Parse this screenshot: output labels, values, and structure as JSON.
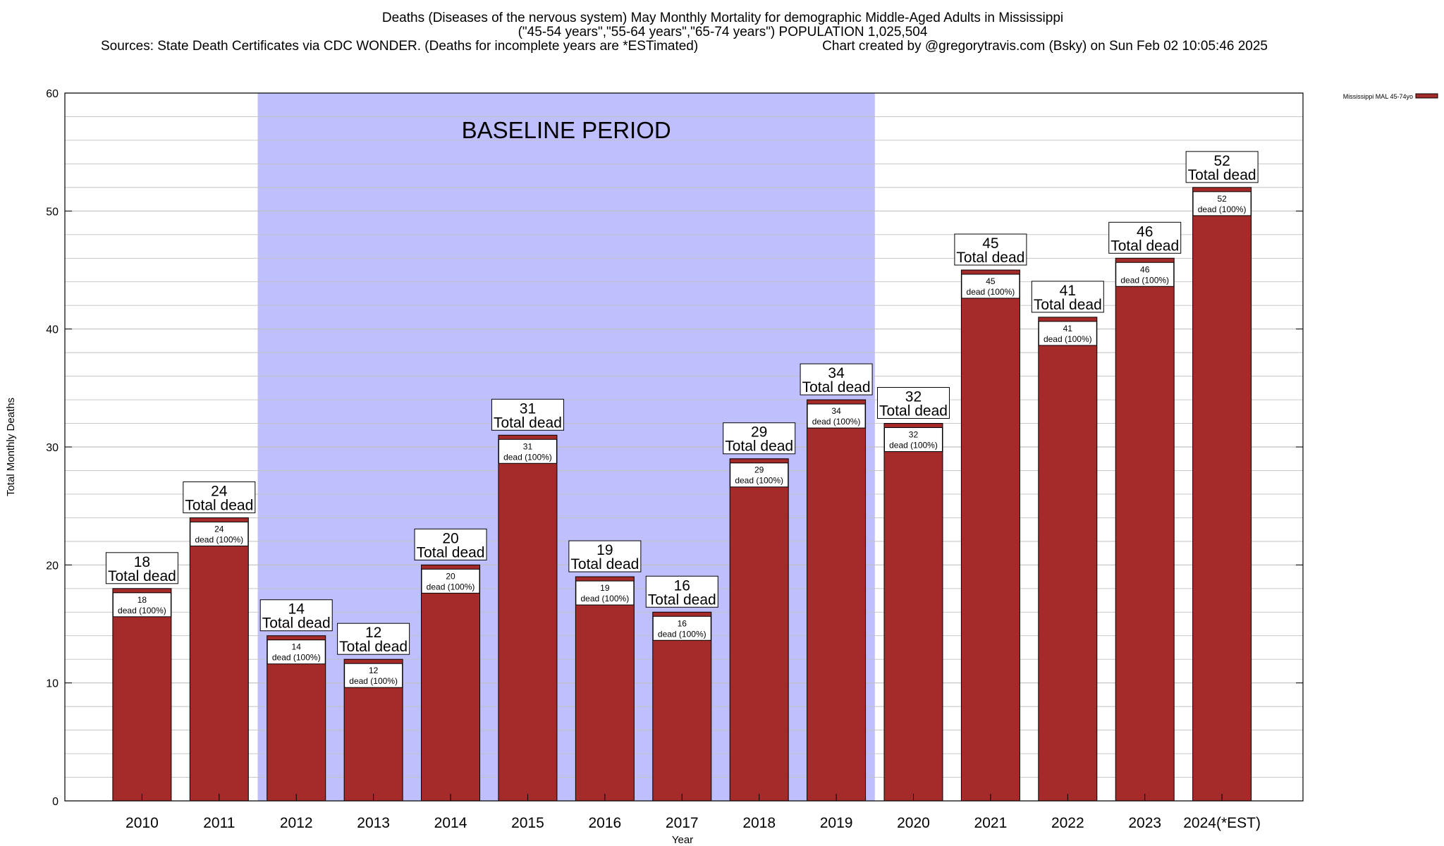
{
  "chart": {
    "title_line1": "Deaths (Diseases of the nervous system) May Monthly Mortality for demographic Middle-Aged Adults in Mississippi",
    "title_line2": "(\"45-54 years\",\"55-64 years\",\"65-74 years\") POPULATION 1,025,504",
    "title_line3_left": "Sources: State Death Certificates via CDC WONDER. (Deaths for incomplete years are *ESTimated)",
    "title_line3_right": "Chart created by @gregorytravis.com (Bsky) on Sun Feb 02 10:05:46 2025",
    "baseline_label": "BASELINE PERIOD",
    "legend_label": "Mississippi MAL 45-74yo",
    "colors": {
      "bar": "#a52a2a",
      "baseline_shade": "#bfbffe",
      "grid": "#c0c0c0"
    }
  },
  "chart_data": {
    "type": "bar",
    "title": "Deaths (Diseases of the nervous system) May Monthly Mortality for demographic Middle-Aged Adults in Mississippi",
    "xlabel": "Year",
    "ylabel": "Total Monthly Deaths",
    "ylim": [
      0,
      60
    ],
    "yticks": [
      0,
      10,
      20,
      30,
      40,
      50,
      60
    ],
    "grid": true,
    "legend_position": "top-right",
    "baseline_period": [
      "2012",
      "2019"
    ],
    "categories": [
      "2010",
      "2011",
      "2012",
      "2013",
      "2014",
      "2015",
      "2016",
      "2017",
      "2018",
      "2019",
      "2020",
      "2021",
      "2022",
      "2023",
      "2024(*EST)"
    ],
    "series": [
      {
        "name": "Mississippi MAL 45-74yo",
        "values": [
          18,
          24,
          14,
          12,
          20,
          31,
          19,
          16,
          29,
          34,
          32,
          45,
          41,
          46,
          52
        ]
      }
    ],
    "data_labels": {
      "total_suffix": "Total dead",
      "segment_suffix": "dead (100%)"
    }
  }
}
